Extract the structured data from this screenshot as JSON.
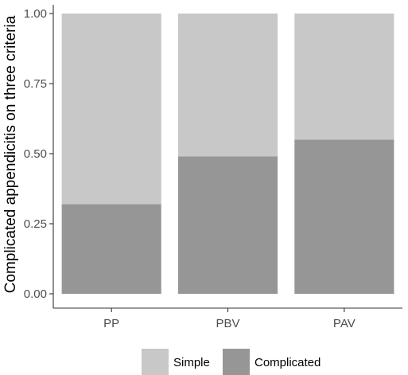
{
  "chart_data": {
    "type": "bar",
    "stacked": true,
    "normalized": true,
    "categories": [
      "PP",
      "PBV",
      "PAV"
    ],
    "series": [
      {
        "name": "Complicated",
        "values": [
          0.32,
          0.49,
          0.55
        ]
      },
      {
        "name": "Simple",
        "values": [
          0.68,
          0.51,
          0.45
        ]
      }
    ],
    "ylabel": "Complicated appendicitis on three criteria",
    "xlabel": "",
    "ylim": [
      0,
      1
    ],
    "y_ticks": [
      "0.00",
      "0.25",
      "0.50",
      "0.75",
      "1.00"
    ],
    "legend_position": "bottom",
    "grid": false,
    "colors": {
      "Simple": "#c8c8c8",
      "Complicated": "#969696",
      "axis": "#333333"
    }
  }
}
